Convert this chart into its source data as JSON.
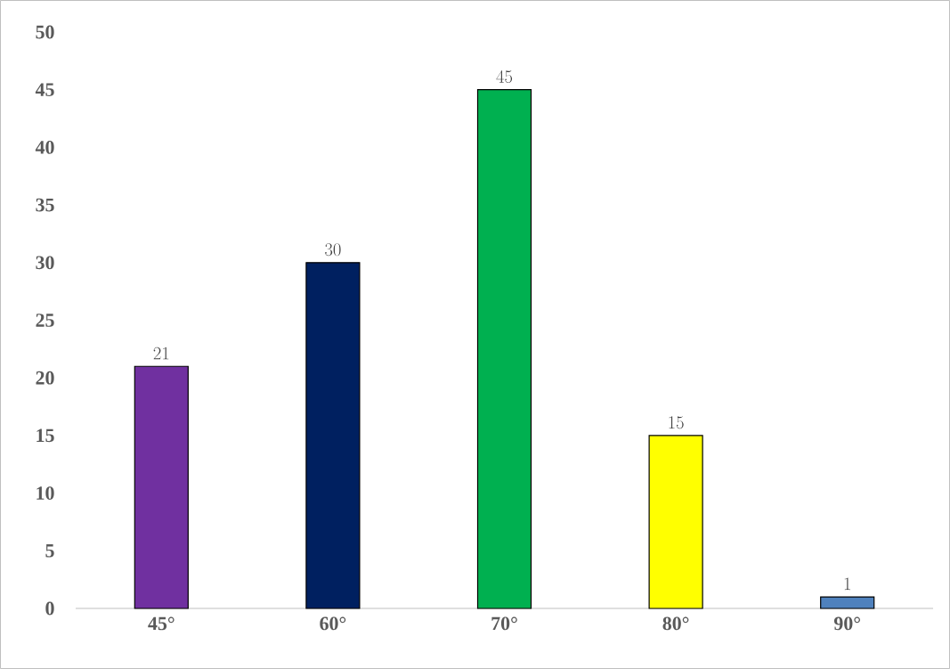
{
  "chart_data": {
    "type": "bar",
    "categories": [
      "45°",
      "60°",
      "70°",
      "80°",
      "90°"
    ],
    "values": [
      21,
      30,
      45,
      15,
      1
    ],
    "colors": [
      "#7030a0",
      "#002060",
      "#00b050",
      "#ffff00",
      "#4f81bd"
    ],
    "ylim": [
      0,
      50
    ],
    "yticks": [
      0,
      5,
      10,
      15,
      20,
      25,
      30,
      35,
      40,
      45,
      50
    ],
    "data_labels": true
  }
}
